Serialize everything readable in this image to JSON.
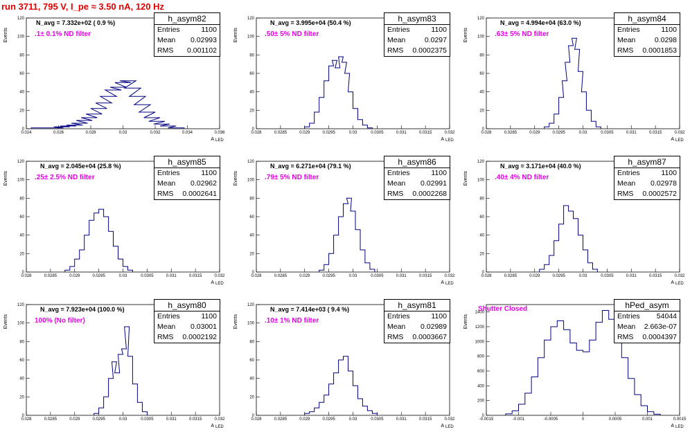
{
  "page_title": "run 3711,   795 V, I_pe ≈ 3.50 nA, 120 Hz",
  "chart_data": [
    {
      "type": "histogram",
      "name": "h_asym82",
      "entries": "1100",
      "mean": "0.02993",
      "rms": "0.001102",
      "n_avg": "N_avg = 7.332e+02 ( 0.9 %)",
      "filter": ".1± 0.1% ND filter",
      "xlabel": "A_{LED}",
      "ylabel": "Events",
      "xlim": [
        0.024,
        0.036
      ],
      "ylim": [
        0,
        120
      ],
      "xticks": [
        "0.024",
        "0.026",
        "0.028",
        "0.03",
        "0.032",
        "0.034",
        "0.036"
      ],
      "yticks": [
        "0",
        "20",
        "40",
        "60",
        "80",
        "100",
        "120"
      ],
      "bins": [
        [
          0.0248,
          1
        ],
        [
          0.0258,
          1
        ],
        [
          0.0262,
          2
        ],
        [
          0.0266,
          3
        ],
        [
          0.027,
          4
        ],
        [
          0.0273,
          6
        ],
        [
          0.0276,
          9
        ],
        [
          0.0279,
          12
        ],
        [
          0.0282,
          16
        ],
        [
          0.0285,
          22
        ],
        [
          0.0288,
          28
        ],
        [
          0.0291,
          35
        ],
        [
          0.0294,
          42
        ],
        [
          0.0297,
          45
        ],
        [
          0.03,
          50
        ],
        [
          0.0303,
          52
        ],
        [
          0.0306,
          44
        ],
        [
          0.0309,
          35
        ],
        [
          0.0312,
          26
        ],
        [
          0.0315,
          18
        ],
        [
          0.0318,
          12
        ],
        [
          0.0321,
          8
        ],
        [
          0.0324,
          5
        ],
        [
          0.0328,
          3
        ],
        [
          0.0333,
          1
        ]
      ]
    },
    {
      "type": "histogram",
      "name": "h_asym83",
      "entries": "1100",
      "mean": "0.0297",
      "rms": "0.0002375",
      "n_avg": "N_avg = 3.995e+04 (50.4 %)",
      "filter": ".50± 5% ND filter",
      "xlabel": "A_{LED}",
      "ylabel": "Events",
      "xlim": [
        0.028,
        0.032
      ],
      "ylim": [
        0,
        120
      ],
      "xticks": [
        "0.028",
        "0.0285",
        "0.029",
        "0.0295",
        "0.03",
        "0.0305",
        "0.031",
        "0.0315",
        "0.032"
      ],
      "yticks": [
        "0",
        "20",
        "40",
        "60",
        "80",
        "100",
        "120"
      ],
      "bins": [
        [
          0.02905,
          2
        ],
        [
          0.02915,
          6
        ],
        [
          0.02925,
          18
        ],
        [
          0.02935,
          34
        ],
        [
          0.02945,
          52
        ],
        [
          0.02955,
          68
        ],
        [
          0.02962,
          74
        ],
        [
          0.02968,
          66
        ],
        [
          0.02975,
          78
        ],
        [
          0.02982,
          72
        ],
        [
          0.02988,
          60
        ],
        [
          0.02995,
          40
        ],
        [
          0.03005,
          22
        ],
        [
          0.03015,
          10
        ],
        [
          0.03025,
          4
        ],
        [
          0.03035,
          1
        ]
      ]
    },
    {
      "type": "histogram",
      "name": "h_asym84",
      "entries": "1100",
      "mean": "0.0298",
      "rms": "0.0001853",
      "n_avg": "N_avg = 4.994e+04 (63.0 %)",
      "filter": ".63± 5% ND filter",
      "xlabel": "A_{LED}",
      "ylabel": "Events",
      "xlim": [
        0.028,
        0.032
      ],
      "ylim": [
        0,
        120
      ],
      "xticks": [
        "0.028",
        "0.0285",
        "0.029",
        "0.0295",
        "0.03",
        "0.0305",
        "0.031",
        "0.0315",
        "0.032"
      ],
      "yticks": [
        "0",
        "20",
        "40",
        "60",
        "80",
        "100",
        "120"
      ],
      "bins": [
        [
          0.02925,
          2
        ],
        [
          0.02935,
          6
        ],
        [
          0.02945,
          16
        ],
        [
          0.02955,
          34
        ],
        [
          0.02962,
          52
        ],
        [
          0.02968,
          72
        ],
        [
          0.02975,
          90
        ],
        [
          0.02982,
          98
        ],
        [
          0.02988,
          86
        ],
        [
          0.02995,
          62
        ],
        [
          0.03002,
          40
        ],
        [
          0.03012,
          20
        ],
        [
          0.03022,
          8
        ],
        [
          0.03032,
          2
        ]
      ]
    },
    {
      "type": "histogram",
      "name": "h_asym85",
      "entries": "1100",
      "mean": "0.02962",
      "rms": "0.0002641",
      "n_avg": "N_avg = 2.045e+04 (25.8 %)",
      "filter": ".25± 2.5% ND filter",
      "xlabel": "A_{LED}",
      "ylabel": "Events",
      "xlim": [
        0.028,
        0.032
      ],
      "ylim": [
        0,
        120
      ],
      "xticks": [
        "0.028",
        "0.0285",
        "0.029",
        "0.0295",
        "0.03",
        "0.0305",
        "0.031",
        "0.0315",
        "0.032"
      ],
      "yticks": [
        "0",
        "20",
        "40",
        "60",
        "80",
        "100",
        "120"
      ],
      "bins": [
        [
          0.02885,
          2
        ],
        [
          0.02895,
          6
        ],
        [
          0.02905,
          14
        ],
        [
          0.02915,
          24
        ],
        [
          0.02925,
          40
        ],
        [
          0.02935,
          56
        ],
        [
          0.02945,
          64
        ],
        [
          0.02955,
          68
        ],
        [
          0.02965,
          60
        ],
        [
          0.02975,
          44
        ],
        [
          0.02985,
          28
        ],
        [
          0.02995,
          14
        ],
        [
          0.03005,
          6
        ],
        [
          0.03015,
          2
        ]
      ]
    },
    {
      "type": "histogram",
      "name": "h_asym86",
      "entries": "1100",
      "mean": "0.02991",
      "rms": "0.0002268",
      "n_avg": "N_avg = 6.271e+04 (79.1 %)",
      "filter": ".79± 5% ND filter",
      "xlabel": "A_{LED}",
      "ylabel": "Events",
      "xlim": [
        0.028,
        0.032
      ],
      "ylim": [
        0,
        120
      ],
      "xticks": [
        "0.028",
        "0.0285",
        "0.029",
        "0.0295",
        "0.03",
        "0.0305",
        "0.031",
        "0.0315",
        "0.032"
      ],
      "yticks": [
        "0",
        "20",
        "40",
        "60",
        "80",
        "100",
        "120"
      ],
      "bins": [
        [
          0.02935,
          2
        ],
        [
          0.02945,
          8
        ],
        [
          0.02955,
          20
        ],
        [
          0.02965,
          40
        ],
        [
          0.02975,
          60
        ],
        [
          0.02985,
          74
        ],
        [
          0.02992,
          80
        ],
        [
          0.03,
          66
        ],
        [
          0.0301,
          46
        ],
        [
          0.0302,
          24
        ],
        [
          0.0303,
          10
        ],
        [
          0.0304,
          3
        ]
      ]
    },
    {
      "type": "histogram",
      "name": "h_asym87",
      "entries": "1100",
      "mean": "0.02978",
      "rms": "0.0002572",
      "n_avg": "N_avg = 3.171e+04 (40.0 %)",
      "filter": ".40± 4% ND filter",
      "xlabel": "A_{LED}",
      "ylabel": "Events",
      "xlim": [
        0.028,
        0.032
      ],
      "ylim": [
        0,
        120
      ],
      "xticks": [
        "0.028",
        "0.0285",
        "0.029",
        "0.0295",
        "0.03",
        "0.0305",
        "0.031",
        "0.0315",
        "0.032"
      ],
      "yticks": [
        "0",
        "20",
        "40",
        "60",
        "80",
        "100",
        "120"
      ],
      "bins": [
        [
          0.02915,
          3
        ],
        [
          0.02925,
          8
        ],
        [
          0.02935,
          18
        ],
        [
          0.02945,
          34
        ],
        [
          0.02955,
          52
        ],
        [
          0.02965,
          72
        ],
        [
          0.02975,
          66
        ],
        [
          0.02985,
          58
        ],
        [
          0.02995,
          40
        ],
        [
          0.03005,
          24
        ],
        [
          0.03015,
          10
        ],
        [
          0.03025,
          3
        ]
      ]
    },
    {
      "type": "histogram",
      "name": "h_asym80",
      "entries": "1100",
      "mean": "0.03001",
      "rms": "0.0002192",
      "n_avg": "N_avg = 7.923e+04 (100.0 %)",
      "filter": "100% (No filter)",
      "xlabel": "A_{LED}",
      "ylabel": "Events",
      "xlim": [
        0.028,
        0.032
      ],
      "ylim": [
        0,
        120
      ],
      "xticks": [
        "0.028",
        "0.0285",
        "0.029",
        "0.0295",
        "0.03",
        "0.0305",
        "0.031",
        "0.0315",
        "0.032"
      ],
      "yticks": [
        "0",
        "20",
        "40",
        "60",
        "80",
        "100",
        "120"
      ],
      "bins": [
        [
          0.02945,
          2
        ],
        [
          0.02955,
          8
        ],
        [
          0.02965,
          20
        ],
        [
          0.02975,
          40
        ],
        [
          0.02982,
          58
        ],
        [
          0.02988,
          46
        ],
        [
          0.02995,
          66
        ],
        [
          0.03002,
          72
        ],
        [
          0.03008,
          96
        ],
        [
          0.03015,
          64
        ],
        [
          0.03025,
          34
        ],
        [
          0.03035,
          14
        ],
        [
          0.03045,
          4
        ]
      ]
    },
    {
      "type": "histogram",
      "name": "h_asym81",
      "entries": "1100",
      "mean": "0.02989",
      "rms": "0.0003667",
      "n_avg": "N_avg = 7.414e+03 ( 9.4 %)",
      "filter": ".10± 1% ND filter",
      "xlabel": "A_{LED}",
      "ylabel": "Events",
      "xlim": [
        0.028,
        0.032
      ],
      "ylim": [
        0,
        120
      ],
      "xticks": [
        "0.028",
        "0.0285",
        "0.029",
        "0.0295",
        "0.03",
        "0.0305",
        "0.031",
        "0.0315",
        "0.032"
      ],
      "yticks": [
        "0",
        "20",
        "40",
        "60",
        "80",
        "100",
        "120"
      ],
      "bins": [
        [
          0.02905,
          2
        ],
        [
          0.02915,
          4
        ],
        [
          0.02925,
          8
        ],
        [
          0.02935,
          14
        ],
        [
          0.02945,
          22
        ],
        [
          0.02955,
          34
        ],
        [
          0.02965,
          46
        ],
        [
          0.02975,
          60
        ],
        [
          0.02985,
          64
        ],
        [
          0.02995,
          48
        ],
        [
          0.03005,
          32
        ],
        [
          0.03015,
          18
        ],
        [
          0.03025,
          10
        ],
        [
          0.03035,
          5
        ],
        [
          0.03045,
          2
        ]
      ]
    },
    {
      "type": "histogram",
      "name": "hPed_asym",
      "entries": "54044",
      "mean": "2.663e-07",
      "rms": "0.0004397",
      "filter": "Shutter Closed",
      "xlabel": "A_{LED}",
      "ylabel": "Events",
      "xlim": [
        -0.0015,
        0.0015
      ],
      "ylim": [
        0,
        1500
      ],
      "xticks": [
        "-0.0015",
        "-0.001",
        "-0.0005",
        "0",
        "0.0005",
        "0.001",
        "0.0015"
      ],
      "yticks": [
        "0",
        "200",
        "400",
        "600",
        "800",
        "1000",
        "1200",
        "1400"
      ],
      "bins": [
        [
          -0.00115,
          20
        ],
        [
          -0.00105,
          60
        ],
        [
          -0.00095,
          150
        ],
        [
          -0.00085,
          300
        ],
        [
          -0.00075,
          520
        ],
        [
          -0.00065,
          780
        ],
        [
          -0.00055,
          1020
        ],
        [
          -0.00045,
          1200
        ],
        [
          -0.00035,
          1280
        ],
        [
          -0.00025,
          1160
        ],
        [
          -0.00015,
          980
        ],
        [
          -5e-05,
          880
        ],
        [
          5e-05,
          860
        ],
        [
          0.00015,
          1020
        ],
        [
          0.00025,
          1260
        ],
        [
          0.00035,
          1420
        ],
        [
          0.00045,
          1300
        ],
        [
          0.00055,
          1080
        ],
        [
          0.00065,
          780
        ],
        [
          0.00075,
          500
        ],
        [
          0.00085,
          280
        ],
        [
          0.00095,
          130
        ],
        [
          0.00105,
          50
        ],
        [
          0.00115,
          15
        ]
      ]
    }
  ],
  "stat_labels": {
    "entries": "Entries",
    "mean": "Mean",
    "rms": "RMS"
  }
}
